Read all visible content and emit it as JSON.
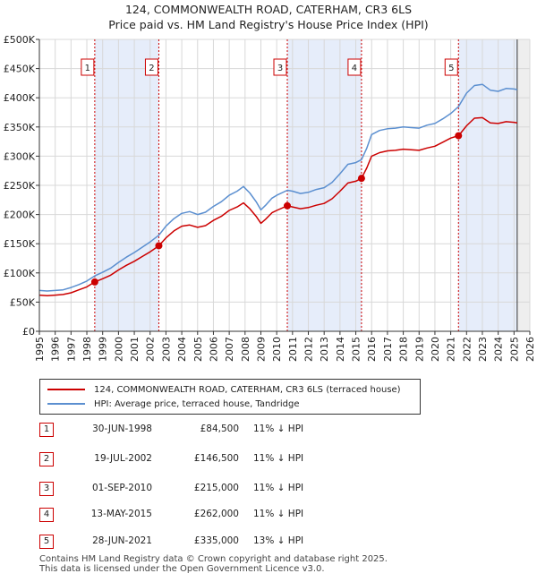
{
  "title_line1": "124, COMMONWEALTH ROAD, CATERHAM, CR3 6LS",
  "title_line2": "Price paid vs. HM Land Registry's House Price Index (HPI)",
  "legend": {
    "property": "124, COMMONWEALTH ROAD, CATERHAM, CR3 6LS (terraced house)",
    "hpi": "HPI: Average price, terraced house, Tandridge"
  },
  "colors": {
    "property": "#cc0000",
    "hpi": "#5b8fd0",
    "shade": "#e6edfa",
    "grid": "#d8d8d8",
    "marker_border": "#cc0000"
  },
  "sales": [
    {
      "num": "1",
      "date": "30-JUN-1998",
      "price": "£84,500",
      "hpi": "11% ↓ HPI"
    },
    {
      "num": "2",
      "date": "19-JUL-2002",
      "price": "£146,500",
      "hpi": "11% ↓ HPI"
    },
    {
      "num": "3",
      "date": "01-SEP-2010",
      "price": "£215,000",
      "hpi": "11% ↓ HPI"
    },
    {
      "num": "4",
      "date": "13-MAY-2015",
      "price": "£262,000",
      "hpi": "11% ↓ HPI"
    },
    {
      "num": "5",
      "date": "28-JUN-2021",
      "price": "£335,000",
      "hpi": "13% ↓ HPI"
    }
  ],
  "footer_line1": "Contains HM Land Registry data © Crown copyright and database right 2025.",
  "footer_line2": "This data is licensed under the Open Government Licence v3.0.",
  "chart_data": {
    "type": "line",
    "title": "124, COMMONWEALTH ROAD, CATERHAM, CR3 6LS — Price paid vs. HM Land Registry's House Price Index (HPI)",
    "xlabel": "",
    "ylabel": "",
    "xlim": [
      1995,
      2026
    ],
    "ylim": [
      0,
      500000
    ],
    "x_ticks": [
      1995,
      1996,
      1997,
      1998,
      1999,
      2000,
      2001,
      2002,
      2003,
      2004,
      2005,
      2006,
      2007,
      2008,
      2009,
      2010,
      2011,
      2012,
      2013,
      2014,
      2015,
      2016,
      2017,
      2018,
      2019,
      2020,
      2021,
      2022,
      2023,
      2024,
      2025,
      2026
    ],
    "y_ticks": [
      0,
      50000,
      100000,
      150000,
      200000,
      250000,
      300000,
      350000,
      400000,
      450000,
      500000
    ],
    "y_tick_labels": [
      "£0",
      "£50K",
      "£100K",
      "£150K",
      "£200K",
      "£250K",
      "£300K",
      "£350K",
      "£400K",
      "£450K",
      "£500K"
    ],
    "grid": true,
    "shaded_ranges": [
      [
        1998.5,
        2002.55
      ],
      [
        2010.67,
        2015.36
      ],
      [
        2021.49,
        2025.2
      ]
    ],
    "data_end": 2025.2,
    "series": [
      {
        "name": "124, COMMONWEALTH ROAD, CATERHAM, CR3 6LS (terraced house)",
        "color": "#cc0000",
        "x": [
          1995,
          1995.5,
          1996,
          1996.5,
          1997,
          1997.5,
          1998,
          1998.5,
          1999,
          1999.5,
          2000,
          2000.5,
          2001,
          2001.5,
          2002,
          2002.55,
          2003,
          2003.5,
          2004,
          2004.5,
          2005,
          2005.5,
          2006,
          2006.5,
          2007,
          2007.5,
          2007.9,
          2008.3,
          2008.7,
          2009,
          2009.3,
          2009.7,
          2010,
          2010.67,
          2011,
          2011.5,
          2012,
          2012.5,
          2013,
          2013.5,
          2014,
          2014.5,
          2015,
          2015.36,
          2015.7,
          2016,
          2016.5,
          2017,
          2017.5,
          2018,
          2018.5,
          2019,
          2019.5,
          2020,
          2020.5,
          2021,
          2021.49,
          2022,
          2022.5,
          2023,
          2023.5,
          2024,
          2024.5,
          2025,
          2025.2
        ],
        "values": [
          62000,
          61000,
          62000,
          63000,
          66000,
          71000,
          76000,
          84500,
          90000,
          96000,
          105000,
          113000,
          120000,
          128000,
          136000,
          146500,
          160000,
          172000,
          180000,
          182000,
          178000,
          181000,
          190000,
          197000,
          207000,
          213000,
          220000,
          210000,
          197000,
          185000,
          192000,
          203000,
          207000,
          215000,
          213000,
          210000,
          212000,
          216000,
          219000,
          227000,
          240000,
          254000,
          257000,
          262000,
          280000,
          300000,
          306000,
          309000,
          310000,
          312000,
          311000,
          310000,
          314000,
          317000,
          324000,
          331000,
          335000,
          352000,
          365000,
          366000,
          357000,
          356000,
          359000,
          358000,
          357000
        ]
      },
      {
        "name": "HPI: Average price, terraced house, Tandridge",
        "color": "#5b8fd0",
        "x": [
          1995,
          1995.5,
          1996,
          1996.5,
          1997,
          1997.5,
          1998,
          1998.5,
          1999,
          1999.5,
          2000,
          2000.5,
          2001,
          2001.5,
          2002,
          2002.55,
          2003,
          2003.5,
          2004,
          2004.5,
          2005,
          2005.5,
          2006,
          2006.5,
          2007,
          2007.5,
          2007.9,
          2008.3,
          2008.7,
          2009,
          2009.3,
          2009.7,
          2010,
          2010.67,
          2011,
          2011.5,
          2012,
          2012.5,
          2013,
          2013.5,
          2014,
          2014.5,
          2015,
          2015.36,
          2015.7,
          2016,
          2016.5,
          2017,
          2017.5,
          2018,
          2018.5,
          2019,
          2019.5,
          2020,
          2020.5,
          2021,
          2021.49,
          2022,
          2022.5,
          2023,
          2023.5,
          2024,
          2024.5,
          2025,
          2025.2
        ],
        "values": [
          70000,
          69000,
          70000,
          71000,
          75000,
          80000,
          86000,
          95000,
          101000,
          108000,
          118000,
          127000,
          135000,
          144000,
          153000,
          164500,
          180000,
          193000,
          202000,
          205000,
          200000,
          204000,
          214000,
          222000,
          233000,
          240000,
          248000,
          237000,
          222000,
          208000,
          216000,
          228000,
          233000,
          241500,
          240000,
          236000,
          238000,
          243000,
          246000,
          255000,
          270000,
          286000,
          289000,
          294000,
          314000,
          337000,
          344000,
          347000,
          348000,
          350000,
          349000,
          348000,
          353000,
          356000,
          364000,
          373000,
          385000,
          408000,
          421000,
          423000,
          413000,
          411000,
          416000,
          415000,
          414000
        ]
      }
    ],
    "sale_markers": [
      {
        "label": "1",
        "x": 1998.5,
        "value": 84500
      },
      {
        "label": "2",
        "x": 2002.55,
        "value": 146500
      },
      {
        "label": "3",
        "x": 2010.67,
        "value": 215000
      },
      {
        "label": "4",
        "x": 2015.36,
        "value": 262000
      },
      {
        "label": "5",
        "x": 2021.49,
        "value": 335000
      }
    ]
  }
}
